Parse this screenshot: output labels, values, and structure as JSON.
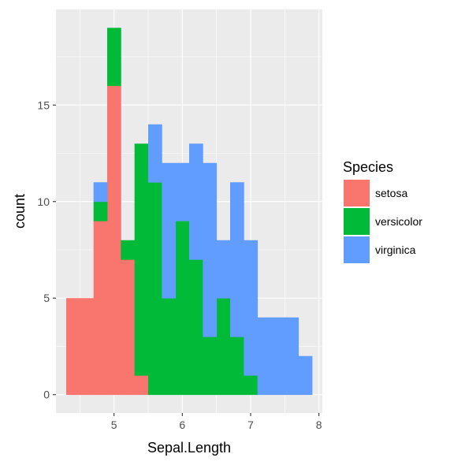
{
  "chart_data": {
    "type": "bar",
    "stacked": true,
    "binwidth": 0.2,
    "xlabel": "Sepal.Length",
    "ylabel": "count",
    "xlim": [
      4.15,
      8.05
    ],
    "ylim": [
      -0.95,
      19.95
    ],
    "x_ticks": [
      5,
      6,
      7,
      8
    ],
    "y_ticks": [
      0,
      5,
      10,
      15
    ],
    "x_tick_labels": [
      "5",
      "6",
      "7",
      "8"
    ],
    "y_tick_labels": [
      "0",
      "5",
      "10",
      "15"
    ],
    "bin_left_edges": [
      4.3,
      4.5,
      4.7,
      4.9,
      5.1,
      5.3,
      5.5,
      5.7,
      5.9,
      6.1,
      6.3,
      6.5,
      6.7,
      6.9,
      7.1,
      7.3,
      7.5,
      7.7
    ],
    "series": [
      {
        "name": "setosa",
        "color": "#F8766D",
        "values": [
          5,
          5,
          9,
          16,
          7,
          1,
          0,
          0,
          0,
          0,
          0,
          0,
          0,
          0,
          0,
          0,
          0,
          0
        ]
      },
      {
        "name": "versicolor",
        "color": "#00BA38",
        "values": [
          0,
          0,
          1,
          3,
          1,
          12,
          11,
          5,
          9,
          7,
          3,
          5,
          3,
          1,
          0,
          0,
          0,
          0
        ]
      },
      {
        "name": "virginica",
        "color": "#619CFF",
        "values": [
          0,
          0,
          1,
          0,
          0,
          0,
          3,
          7,
          3,
          6,
          9,
          3,
          8,
          7,
          4,
          4,
          4,
          2
        ]
      }
    ],
    "grid": true,
    "legend": {
      "title": "Species",
      "position": "right"
    }
  }
}
